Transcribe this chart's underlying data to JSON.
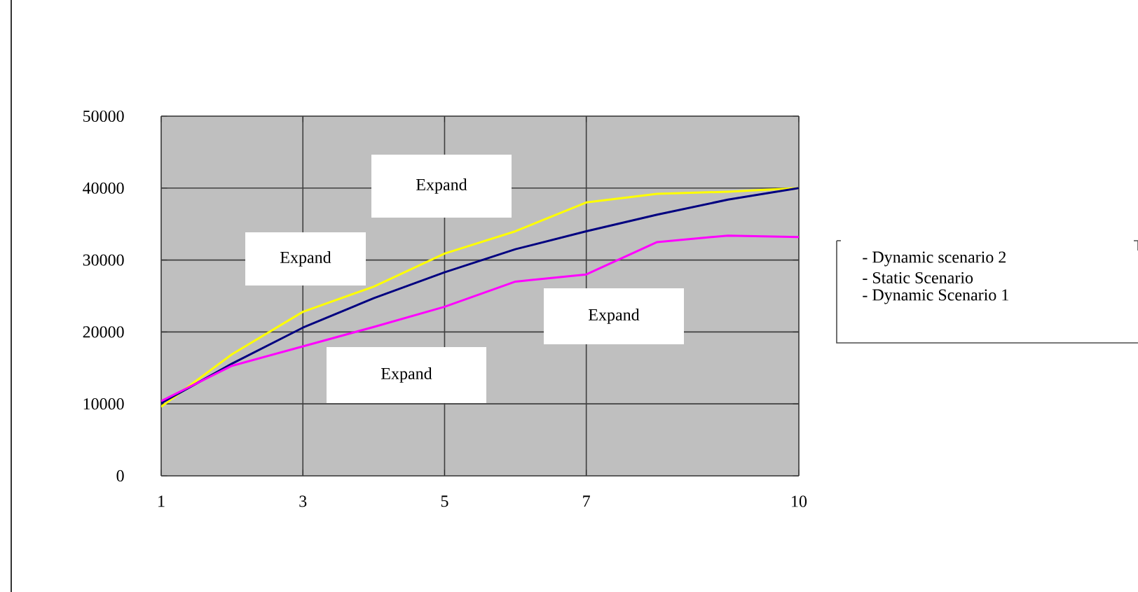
{
  "chart_data": {
    "type": "line",
    "x": [
      1,
      2,
      3,
      4,
      5,
      6,
      7,
      8,
      9,
      10
    ],
    "series": [
      {
        "name": "- Dynamic scenario 2",
        "color": "#ffff00",
        "values": [
          9600,
          16900,
          22800,
          26300,
          30900,
          34000,
          38000,
          39200,
          39500,
          40000
        ]
      },
      {
        "name": "- Static Scenario",
        "color": "#000080",
        "values": [
          10100,
          15600,
          20600,
          24700,
          28300,
          31500,
          34000,
          36300,
          38400,
          40000
        ]
      },
      {
        "name": "- Dynamic Scenario 1",
        "color": "#ff00ff",
        "values": [
          10400,
          15300,
          18000,
          20700,
          23500,
          27000,
          28000,
          32500,
          33400,
          33200
        ]
      }
    ],
    "xlim": [
      1,
      10
    ],
    "xticks": [
      1,
      3,
      5,
      7,
      10
    ],
    "ylim": [
      0,
      50000
    ],
    "yticks": [
      0,
      10000,
      20000,
      30000,
      40000,
      50000
    ],
    "grid": true,
    "legend": "right",
    "marker": "none",
    "line_style": "solid",
    "annotations": [
      "Expand",
      "Expand",
      "Expand",
      "Expand"
    ]
  }
}
